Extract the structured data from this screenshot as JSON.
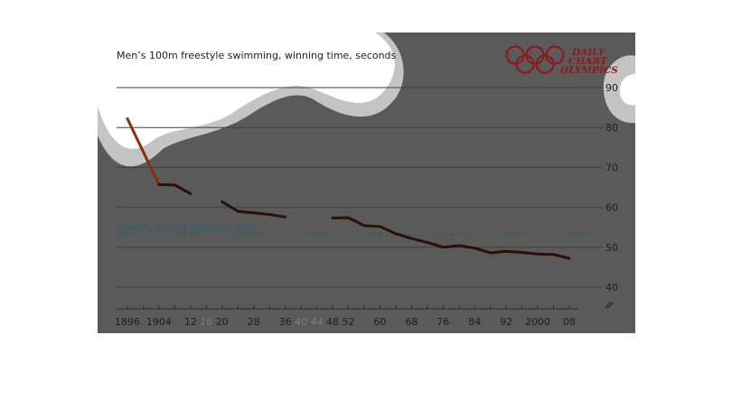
{
  "colors": {
    "plot_background": "#5a5a5a",
    "gridline": "#3f3f3f",
    "series_line": "#2a0f0a",
    "series_line_early": "#8a2a12",
    "reference_line": "#2c5d72",
    "brand": "#8a1a1d"
  },
  "brand": {
    "line1": "DAILY",
    "line2": "CHART",
    "line3": "OLYMPICS",
    "logo": "olympic-rings-icon"
  },
  "chart_data": {
    "type": "line",
    "title": "Men’s 100m freestyle swimming, winning time, seconds",
    "xlabel": "",
    "ylabel": "",
    "ylim": [
      35,
      93
    ],
    "xlim": [
      1896,
      2008
    ],
    "y_ticks": [
      40,
      50,
      60,
      70,
      80,
      90
    ],
    "y_axis_side": "right",
    "y_axis_break": true,
    "grid": true,
    "x_ticks": [
      {
        "year": 1896,
        "label": "1896",
        "no_games": false
      },
      {
        "year": 1904,
        "label": "1904",
        "no_games": false
      },
      {
        "year": 1912,
        "label": "12",
        "no_games": false
      },
      {
        "year": 1916,
        "label": "16",
        "no_games": true
      },
      {
        "year": 1920,
        "label": "20",
        "no_games": false
      },
      {
        "year": 1928,
        "label": "28",
        "no_games": false
      },
      {
        "year": 1936,
        "label": "36",
        "no_games": false
      },
      {
        "year": 1940,
        "label": "40",
        "no_games": true
      },
      {
        "year": 1944,
        "label": "44",
        "no_games": true
      },
      {
        "year": 1948,
        "label": "48",
        "no_games": false
      },
      {
        "year": 1952,
        "label": "52",
        "no_games": false
      },
      {
        "year": 1960,
        "label": "60",
        "no_games": false
      },
      {
        "year": 1968,
        "label": "68",
        "no_games": false
      },
      {
        "year": 1976,
        "label": "76",
        "no_games": false
      },
      {
        "year": 1984,
        "label": "84",
        "no_games": false
      },
      {
        "year": 1992,
        "label": "92",
        "no_games": false
      },
      {
        "year": 2000,
        "label": "2000",
        "no_games": false
      },
      {
        "year": 2008,
        "label": "08",
        "no_games": false
      }
    ],
    "minor_tick_years": [
      1896,
      1900,
      1904,
      1908,
      1912,
      1916,
      1920,
      1924,
      1928,
      1932,
      1936,
      1940,
      1944,
      1948,
      1952,
      1956,
      1960,
      1964,
      1968,
      1972,
      1976,
      1980,
      1984,
      1988,
      1992,
      1996,
      2000,
      2004,
      2008
    ],
    "series": [
      {
        "segments": [
          [
            [
              1896,
              82.2
            ],
            [
              1904,
              65.7
            ],
            [
              1908,
              65.6
            ],
            [
              1912,
              63.4
            ]
          ],
          [
            [
              1920,
              61.4
            ],
            [
              1924,
              59.0
            ],
            [
              1928,
              58.6
            ],
            [
              1932,
              58.2
            ],
            [
              1936,
              57.6
            ]
          ],
          [
            [
              1948,
              57.3
            ],
            [
              1952,
              57.4
            ],
            [
              1956,
              55.4
            ],
            [
              1960,
              55.2
            ],
            [
              1964,
              53.4
            ],
            [
              1968,
              52.2
            ],
            [
              1972,
              51.2
            ],
            [
              1976,
              50.0
            ],
            [
              1980,
              50.4
            ],
            [
              1984,
              49.8
            ],
            [
              1988,
              48.6
            ],
            [
              1992,
              49.0
            ],
            [
              1996,
              48.7
            ],
            [
              2000,
              48.3
            ],
            [
              2004,
              48.2
            ],
            [
              2008,
              47.2
            ]
          ]
        ]
      }
    ],
    "reference_lines": [
      {
        "label": "WOMEN’S 2008 WINNING TIME",
        "value": 53.1
      }
    ]
  }
}
